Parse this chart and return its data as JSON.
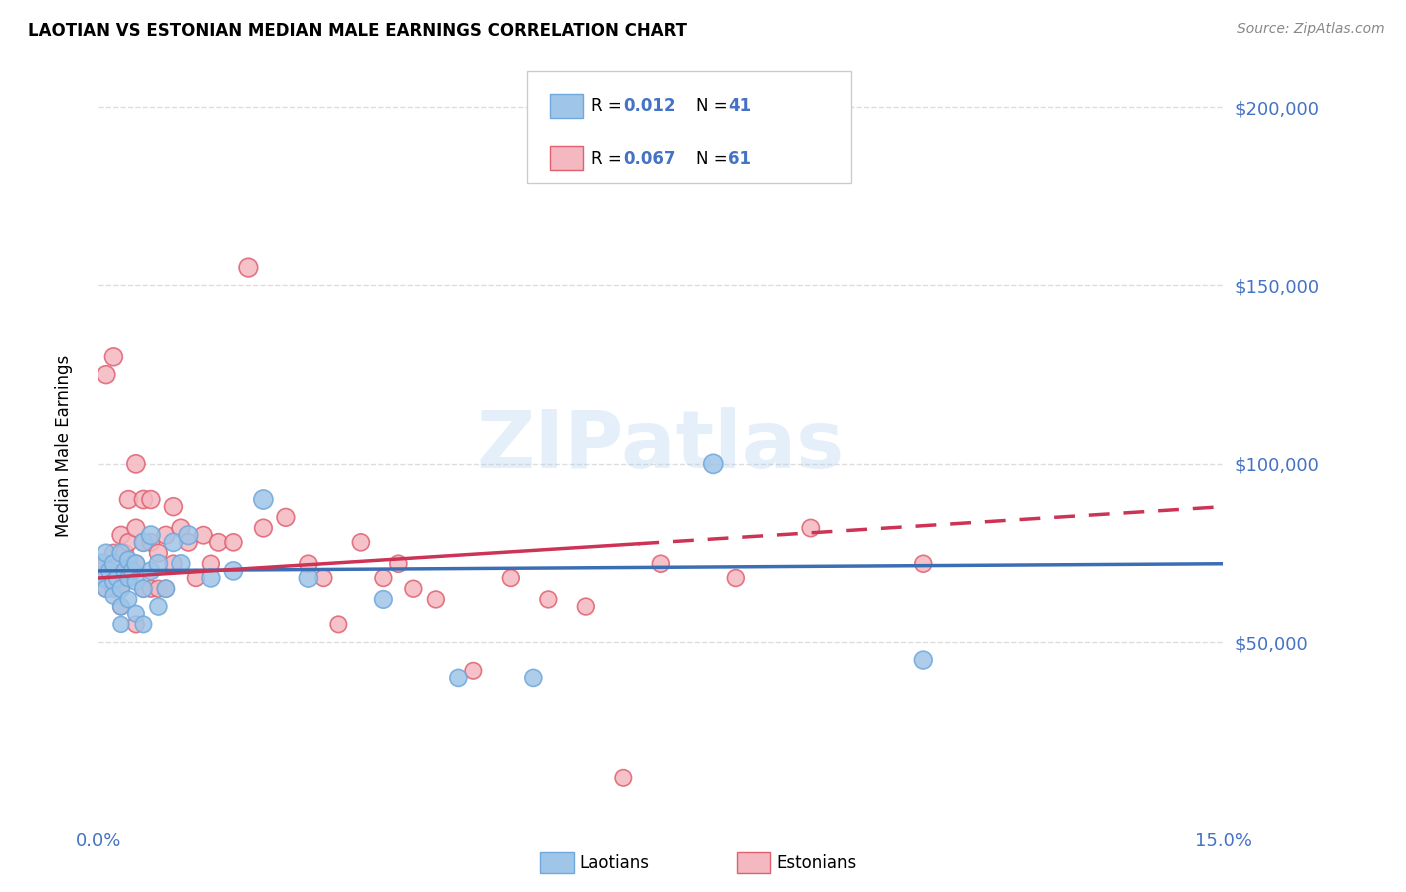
{
  "title": "LAOTIAN VS ESTONIAN MEDIAN MALE EARNINGS CORRELATION CHART",
  "source": "Source: ZipAtlas.com",
  "ylabel_label": "Median Male Earnings",
  "x_min": 0.0,
  "x_max": 0.15,
  "y_min": 0,
  "y_max": 210000,
  "yticks": [
    50000,
    100000,
    150000,
    200000
  ],
  "ytick_labels": [
    "$50,000",
    "$100,000",
    "$150,000",
    "$200,000"
  ],
  "xticks": [
    0.0,
    0.03,
    0.06,
    0.09,
    0.12,
    0.15
  ],
  "xtick_labels": [
    "0.0%",
    "",
    "",
    "",
    "",
    "15.0%"
  ],
  "background_color": "#ffffff",
  "grid_color": "#dddddd",
  "axis_color": "#4472c4",
  "laotian_color": "#9fc5e8",
  "estonian_color": "#f4b8c1",
  "laotian_edge_color": "#6fa8dc",
  "estonian_edge_color": "#e06070",
  "laotian_line_color": "#3c6eb4",
  "estonian_line_color": "#cc3355",
  "watermark": "ZIPatlas",
  "laotians_x": [
    0.0005,
    0.001,
    0.001,
    0.001,
    0.0015,
    0.002,
    0.002,
    0.002,
    0.0025,
    0.003,
    0.003,
    0.003,
    0.003,
    0.0035,
    0.004,
    0.004,
    0.004,
    0.0045,
    0.005,
    0.005,
    0.005,
    0.006,
    0.006,
    0.006,
    0.007,
    0.007,
    0.008,
    0.008,
    0.009,
    0.01,
    0.011,
    0.012,
    0.015,
    0.018,
    0.022,
    0.028,
    0.038,
    0.048,
    0.058,
    0.082,
    0.11
  ],
  "laotians_y": [
    72000,
    68000,
    75000,
    65000,
    70000,
    72000,
    67000,
    63000,
    68000,
    75000,
    65000,
    60000,
    55000,
    70000,
    73000,
    68000,
    62000,
    70000,
    72000,
    67000,
    58000,
    78000,
    65000,
    55000,
    80000,
    70000,
    72000,
    60000,
    65000,
    78000,
    72000,
    80000,
    68000,
    70000,
    90000,
    68000,
    62000,
    40000,
    40000,
    100000,
    45000
  ],
  "laotians_size": [
    200,
    180,
    160,
    150,
    160,
    160,
    150,
    140,
    150,
    160,
    150,
    140,
    130,
    150,
    160,
    150,
    140,
    150,
    160,
    150,
    140,
    170,
    155,
    140,
    175,
    160,
    170,
    150,
    155,
    170,
    165,
    180,
    165,
    170,
    190,
    170,
    160,
    150,
    150,
    190,
    165
  ],
  "estonians_x": [
    0.0003,
    0.0005,
    0.001,
    0.001,
    0.001,
    0.0015,
    0.002,
    0.002,
    0.002,
    0.0025,
    0.003,
    0.003,
    0.003,
    0.003,
    0.0035,
    0.004,
    0.004,
    0.004,
    0.005,
    0.005,
    0.005,
    0.005,
    0.006,
    0.006,
    0.006,
    0.007,
    0.007,
    0.007,
    0.008,
    0.008,
    0.009,
    0.009,
    0.01,
    0.01,
    0.011,
    0.012,
    0.013,
    0.014,
    0.015,
    0.016,
    0.018,
    0.02,
    0.022,
    0.025,
    0.028,
    0.03,
    0.032,
    0.035,
    0.038,
    0.04,
    0.042,
    0.045,
    0.05,
    0.055,
    0.06,
    0.065,
    0.07,
    0.075,
    0.085,
    0.095,
    0.11
  ],
  "estonians_y": [
    70000,
    68000,
    125000,
    72000,
    65000,
    68000,
    130000,
    75000,
    65000,
    72000,
    80000,
    68000,
    65000,
    60000,
    75000,
    90000,
    78000,
    68000,
    100000,
    82000,
    72000,
    55000,
    90000,
    78000,
    65000,
    90000,
    78000,
    65000,
    75000,
    65000,
    80000,
    65000,
    88000,
    72000,
    82000,
    78000,
    68000,
    80000,
    72000,
    78000,
    78000,
    155000,
    82000,
    85000,
    72000,
    68000,
    55000,
    78000,
    68000,
    72000,
    65000,
    62000,
    42000,
    68000,
    62000,
    60000,
    12000,
    72000,
    68000,
    82000,
    72000
  ],
  "estonians_size": [
    150,
    150,
    165,
    155,
    145,
    150,
    165,
    155,
    145,
    150,
    160,
    150,
    145,
    140,
    155,
    165,
    155,
    145,
    170,
    160,
    150,
    140,
    170,
    155,
    145,
    165,
    155,
    145,
    160,
    145,
    160,
    145,
    165,
    150,
    160,
    155,
    145,
    155,
    145,
    155,
    150,
    180,
    160,
    162,
    150,
    145,
    140,
    150,
    145,
    150,
    145,
    145,
    140,
    145,
    145,
    145,
    140,
    148,
    147,
    155,
    148
  ],
  "blue_line_x": [
    0.0,
    0.15
  ],
  "blue_line_y": [
    70000,
    72000
  ],
  "pink_line_x": [
    0.0,
    0.15
  ],
  "pink_line_y": [
    68000,
    88000
  ]
}
